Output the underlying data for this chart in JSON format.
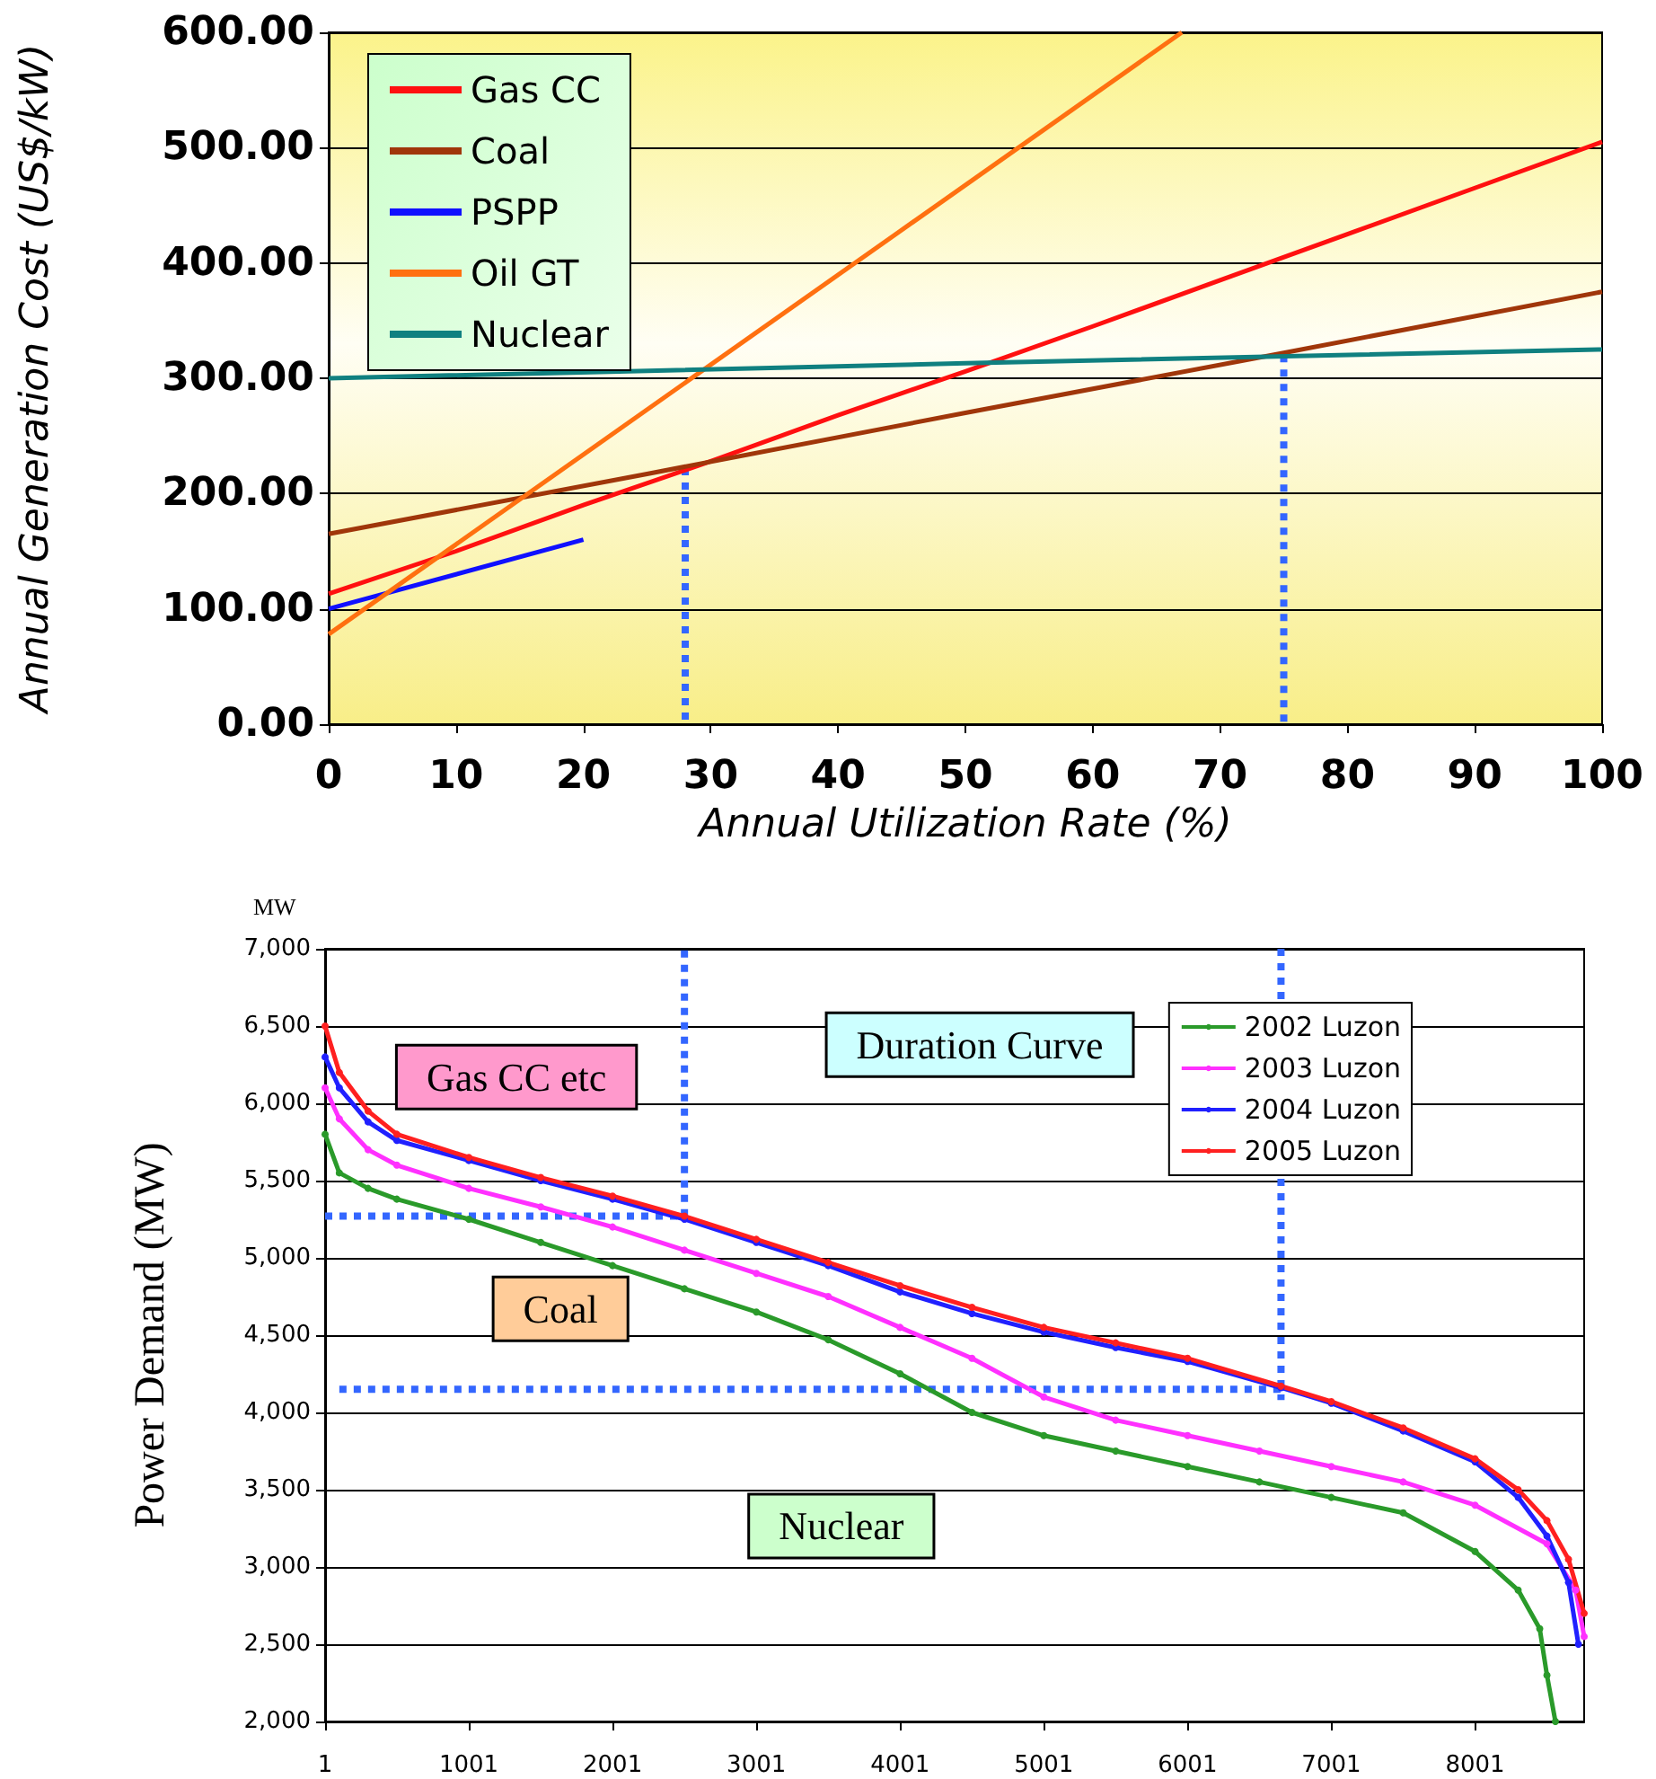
{
  "chart_data": [
    {
      "type": "line",
      "xlabel": "Annual Utilization Rate (%)",
      "ylabel": "Annual Generation Cost (US$/kW)",
      "xlim": [
        0,
        100
      ],
      "xticks": [
        0,
        10,
        20,
        30,
        40,
        50,
        60,
        70,
        80,
        90,
        100
      ],
      "ylim": [
        0,
        600
      ],
      "yticks": [
        {
          "value": 0,
          "label": "0.00"
        },
        {
          "value": 100,
          "label": "100.00"
        },
        {
          "value": 200,
          "label": "200.00"
        },
        {
          "value": 300,
          "label": "300.00"
        },
        {
          "value": 400,
          "label": "400.00"
        },
        {
          "value": 500,
          "label": "500.00"
        },
        {
          "value": 600,
          "label": "600.00"
        }
      ],
      "grid": "y",
      "legend": "top left",
      "line_style": "solid",
      "series": [
        {
          "name": "Gas CC",
          "color": "#ff1010",
          "x": [
            0,
            10,
            20,
            30,
            40,
            50,
            60,
            70,
            80,
            90,
            100
          ],
          "values": [
            113,
            150,
            190,
            228,
            268,
            306,
            345,
            385,
            425,
            465,
            505
          ]
        },
        {
          "name": "Coal",
          "color": "#a0360a",
          "x": [
            0,
            25,
            50,
            75,
            100
          ],
          "values": [
            165,
            217,
            270,
            322,
            375
          ]
        },
        {
          "name": "PSPP",
          "color": "#1010ff",
          "x": [
            0,
            20
          ],
          "values": [
            100,
            160
          ]
        },
        {
          "name": "Oil GT",
          "color": "#ff7010",
          "x": [
            0,
            67
          ],
          "values": [
            78,
            600
          ]
        },
        {
          "name": "Nuclear",
          "color": "#108080",
          "x": [
            0,
            50,
            100
          ],
          "values": [
            300,
            313,
            325
          ]
        },
        {
          "color": "#3366ff",
          "line_style": "dotted",
          "x": [
            28,
            28
          ],
          "values": [
            222,
            0
          ]
        },
        {
          "color": "#3366ff",
          "line_style": "dotted",
          "x": [
            75,
            75
          ],
          "values": [
            320,
            0
          ]
        }
      ]
    },
    {
      "type": "line",
      "ylabel": "Power Demand (MW)",
      "xlim": [
        1,
        8760
      ],
      "xticks": [
        1,
        1001,
        2001,
        3001,
        4001,
        5001,
        6001,
        7001,
        8001
      ],
      "ylim": [
        2000,
        7000
      ],
      "yticks": [
        {
          "value": 2000,
          "label": "2,000"
        },
        {
          "value": 2500,
          "label": "2,500"
        },
        {
          "value": 3000,
          "label": "3,000"
        },
        {
          "value": 3500,
          "label": "3,500"
        },
        {
          "value": 4000,
          "label": "4,000"
        },
        {
          "value": 4500,
          "label": "4,500"
        },
        {
          "value": 5000,
          "label": "5,000"
        },
        {
          "value": 5500,
          "label": "5,500"
        },
        {
          "value": 6000,
          "label": "6,000"
        },
        {
          "value": 6500,
          "label": "6,500"
        },
        {
          "value": 7000,
          "label": "7,000"
        }
      ],
      "grid": "y",
      "legend": "top right",
      "marker": "circle",
      "line_style": "solid",
      "annotations": [
        "MW",
        "Gas CC etc",
        "Duration Curve",
        "Coal",
        "Nuclear"
      ],
      "series": [
        {
          "name": "2002 Luzon",
          "color": "#2a9a2a",
          "x": [
            1,
            100,
            300,
            500,
            1001,
            1501,
            2001,
            2501,
            3001,
            3501,
            4001,
            4501,
            5001,
            5501,
            6001,
            6501,
            7001,
            7501,
            8001,
            8301,
            8451,
            8501,
            8560
          ],
          "values": [
            5800,
            5550,
            5450,
            5380,
            5250,
            5100,
            4950,
            4800,
            4650,
            4470,
            4250,
            4000,
            3850,
            3750,
            3650,
            3550,
            3450,
            3350,
            3100,
            2850,
            2600,
            2300,
            2000
          ]
        },
        {
          "name": "2003 Luzon",
          "color": "#ff30ff",
          "x": [
            1,
            100,
            300,
            500,
            1001,
            1501,
            2001,
            2501,
            3001,
            3501,
            4001,
            4501,
            5001,
            5501,
            6001,
            6501,
            7001,
            7501,
            8001,
            8501,
            8701,
            8760
          ],
          "values": [
            6100,
            5900,
            5700,
            5600,
            5450,
            5330,
            5200,
            5050,
            4900,
            4750,
            4550,
            4350,
            4100,
            3950,
            3850,
            3750,
            3650,
            3550,
            3400,
            3150,
            2850,
            2550
          ]
        },
        {
          "name": "2004 Luzon",
          "color": "#2020ff",
          "x": [
            1,
            100,
            300,
            500,
            1001,
            1501,
            2001,
            2501,
            3001,
            3501,
            4001,
            4501,
            5001,
            5501,
            6001,
            6651,
            7001,
            7501,
            8001,
            8301,
            8501,
            8651,
            8720
          ],
          "values": [
            6300,
            6100,
            5880,
            5760,
            5630,
            5500,
            5380,
            5250,
            5100,
            4950,
            4780,
            4640,
            4520,
            4420,
            4330,
            4160,
            4060,
            3880,
            3680,
            3450,
            3200,
            2900,
            2500
          ]
        },
        {
          "name": "2005 Luzon",
          "color": "#ff2020",
          "x": [
            1,
            100,
            300,
            500,
            1001,
            1501,
            2001,
            2501,
            3001,
            3501,
            4001,
            4501,
            5001,
            5501,
            6001,
            6651,
            7001,
            7501,
            8001,
            8301,
            8501,
            8651,
            8760
          ],
          "values": [
            6500,
            6200,
            5950,
            5800,
            5650,
            5520,
            5400,
            5270,
            5120,
            4970,
            4820,
            4680,
            4550,
            4450,
            4350,
            4170,
            4070,
            3900,
            3700,
            3500,
            3300,
            3050,
            2700
          ]
        },
        {
          "color": "#3366ff",
          "line_style": "dotted",
          "marker": "none",
          "x": [
            1,
            2501,
            2501
          ],
          "values": [
            5270,
            5270,
            7000
          ]
        },
        {
          "color": "#3366ff",
          "line_style": "dotted",
          "marker": "none",
          "x": [
            100,
            6651
          ],
          "values": [
            4150,
            4150
          ]
        },
        {
          "color": "#3366ff",
          "line_style": "dotted",
          "marker": "none",
          "x": [
            6651,
            6651
          ],
          "values": [
            7000,
            4080
          ]
        }
      ]
    }
  ]
}
